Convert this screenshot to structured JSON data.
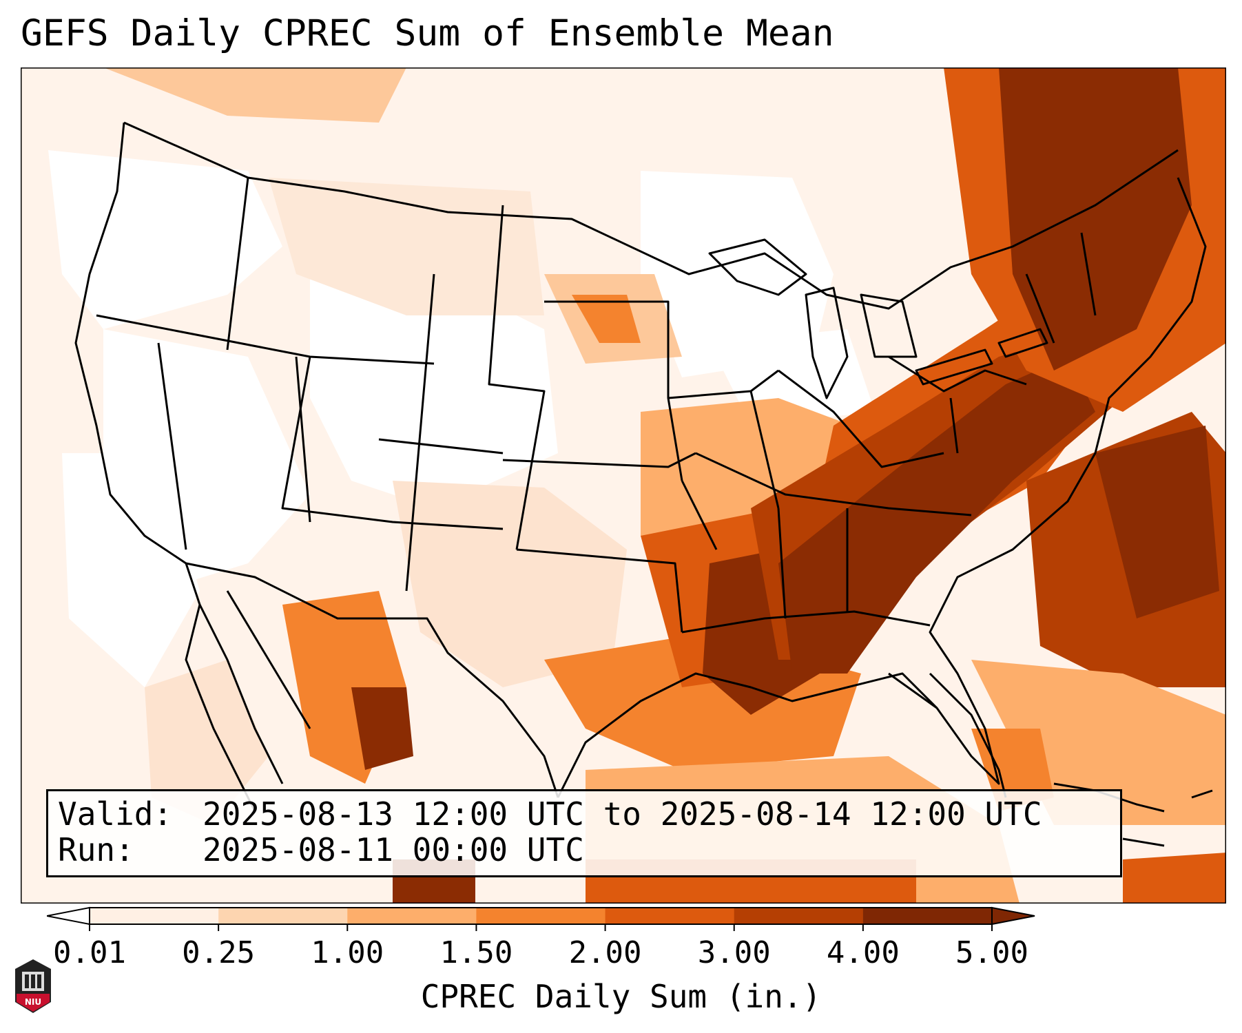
{
  "title": "GEFS Daily CPREC Sum of Ensemble Mean",
  "info": {
    "valid_label": "Valid:",
    "valid_value": "2025-08-13 12:00 UTC to 2025-08-14 12:00 UTC",
    "run_label": "Run:",
    "run_value": "2025-08-11 00:00 UTC"
  },
  "colorbar": {
    "label": "CPREC Daily Sum (in.)",
    "ticks": [
      "0.01",
      "0.25",
      "1.00",
      "1.50",
      "2.00",
      "3.00",
      "4.00",
      "5.00"
    ],
    "colors": [
      "#ffffff",
      "#fff0e4",
      "#fdd5b0",
      "#fdae6b",
      "#f4832e",
      "#dd5a0e",
      "#b53f03",
      "#7f2704"
    ],
    "extend": "both"
  },
  "map": {
    "region": "Contiguous United States",
    "field": "precipitation shading",
    "palette": {
      "white": "#ffffff",
      "very_light": "#fff0e4",
      "light": "#fdd5b0",
      "medium": "#fdae6b",
      "orange": "#f4832e",
      "dark_orange": "#dd5a0e",
      "brown": "#b53f03",
      "dark_brown": "#8b2c03"
    }
  },
  "logo": {
    "text": "NIU",
    "color": "#c8102e"
  }
}
